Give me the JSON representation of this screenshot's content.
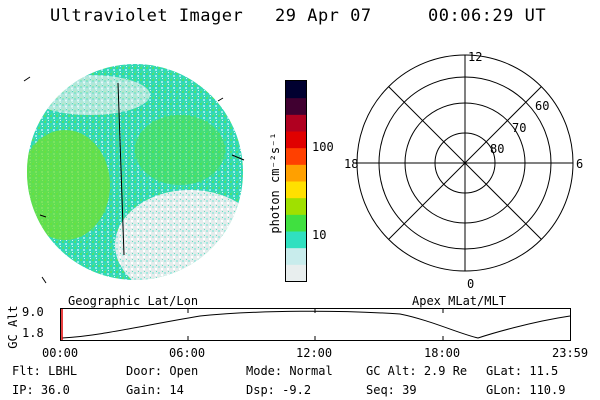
{
  "header": {
    "instrument": "Ultraviolet Imager",
    "date": "29 Apr 07",
    "time": "00:06:29 UT"
  },
  "colorbar": {
    "label": "photon cm⁻²s⁻¹",
    "ticks": [
      "100",
      "10"
    ],
    "colors": [
      "#e8eeee",
      "#c8ecec",
      "#30e0c0",
      "#40e040",
      "#a0e000",
      "#ffe000",
      "#ffa000",
      "#ff4000",
      "#e00000",
      "#b00020",
      "#400030",
      "#000030"
    ]
  },
  "labels": {
    "geo": "Geographic Lat/Lon",
    "apex": "Apex MLat/MLT"
  },
  "polar": {
    "mlt_labels": [
      "12",
      "18",
      "6",
      "0"
    ],
    "lat_labels": [
      "60",
      "70",
      "80"
    ]
  },
  "altitude": {
    "axis_title": "GC Alt",
    "y_ticks": [
      "9.0",
      "1.8"
    ],
    "x_ticks": [
      "00:00",
      "06:00",
      "12:00",
      "18:00",
      "23:59"
    ]
  },
  "status": {
    "flt_label": "Flt:",
    "flt_value": "LBHL",
    "ip_label": "IP:",
    "ip_value": "36.0",
    "door_label": "Door:",
    "door_value": "Open",
    "gain_label": "Gain:",
    "gain_value": "14",
    "mode_label": "Mode:",
    "mode_value": "Normal",
    "dsp_label": "Dsp:",
    "dsp_value": "-9.2",
    "gcalt_label": "GC Alt:",
    "gcalt_value": "2.9 Re",
    "seq_label": "Seq:",
    "seq_value": "39",
    "glat_label": "GLat:",
    "glat_value": "11.5",
    "glon_label": "GLon:",
    "glon_value": "110.9"
  }
}
